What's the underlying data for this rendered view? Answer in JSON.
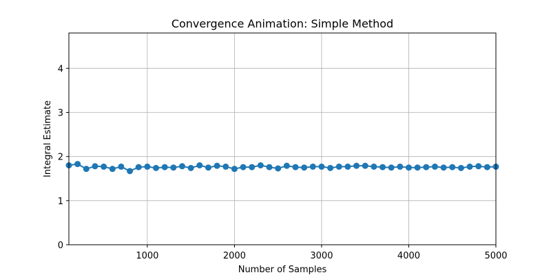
{
  "chart_data": {
    "type": "line",
    "title": "Convergence Animation: Simple Method",
    "xlabel": "Number of Samples",
    "ylabel": "Integral Estimate",
    "xlim": [
      100,
      5000
    ],
    "ylim": [
      0,
      4.8
    ],
    "xticks": [
      1000,
      2000,
      3000,
      4000,
      5000
    ],
    "yticks": [
      0,
      1,
      2,
      3,
      4
    ],
    "grid": true,
    "legend": "none",
    "series": [
      {
        "color": "#1f77b4",
        "marker": "circle",
        "x": [
          100,
          200,
          300,
          400,
          500,
          600,
          700,
          800,
          900,
          1000,
          1100,
          1200,
          1300,
          1400,
          1500,
          1600,
          1700,
          1800,
          1900,
          2000,
          2100,
          2200,
          2300,
          2400,
          2500,
          2600,
          2700,
          2800,
          2900,
          3000,
          3100,
          3200,
          3300,
          3400,
          3500,
          3600,
          3700,
          3800,
          3900,
          4000,
          4100,
          4200,
          4300,
          4400,
          4500,
          4600,
          4700,
          4800,
          4900,
          5000
        ],
        "y": [
          1.8,
          1.83,
          1.72,
          1.78,
          1.77,
          1.72,
          1.77,
          1.67,
          1.76,
          1.77,
          1.74,
          1.76,
          1.75,
          1.78,
          1.74,
          1.8,
          1.75,
          1.79,
          1.77,
          1.72,
          1.76,
          1.76,
          1.8,
          1.76,
          1.73,
          1.79,
          1.76,
          1.75,
          1.77,
          1.77,
          1.74,
          1.77,
          1.77,
          1.79,
          1.79,
          1.77,
          1.76,
          1.75,
          1.77,
          1.75,
          1.75,
          1.76,
          1.77,
          1.75,
          1.76,
          1.74,
          1.77,
          1.78,
          1.76,
          1.77
        ]
      }
    ]
  }
}
